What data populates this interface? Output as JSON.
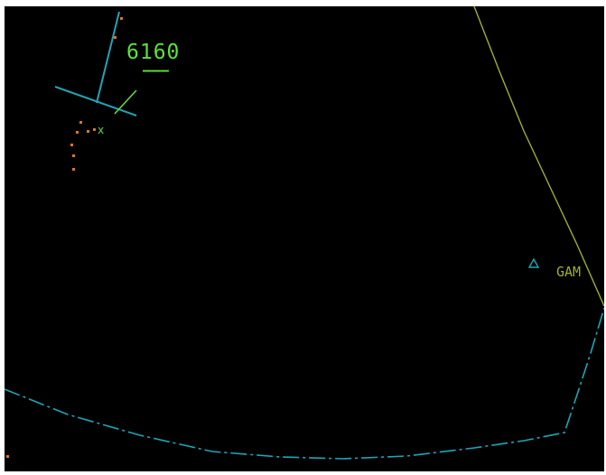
{
  "scope": {
    "background_color": "#000000",
    "sector_color": "#1aa7b7",
    "airway_color": "#9db12a",
    "datablock_color": "#5de23a",
    "history_color": "#d9781e"
  },
  "track": {
    "datablock_line1": "6160",
    "datablock_line2": "———",
    "target_symbol": "x"
  },
  "fix": {
    "label": "GAM",
    "icon": "triangle-fix-icon"
  }
}
